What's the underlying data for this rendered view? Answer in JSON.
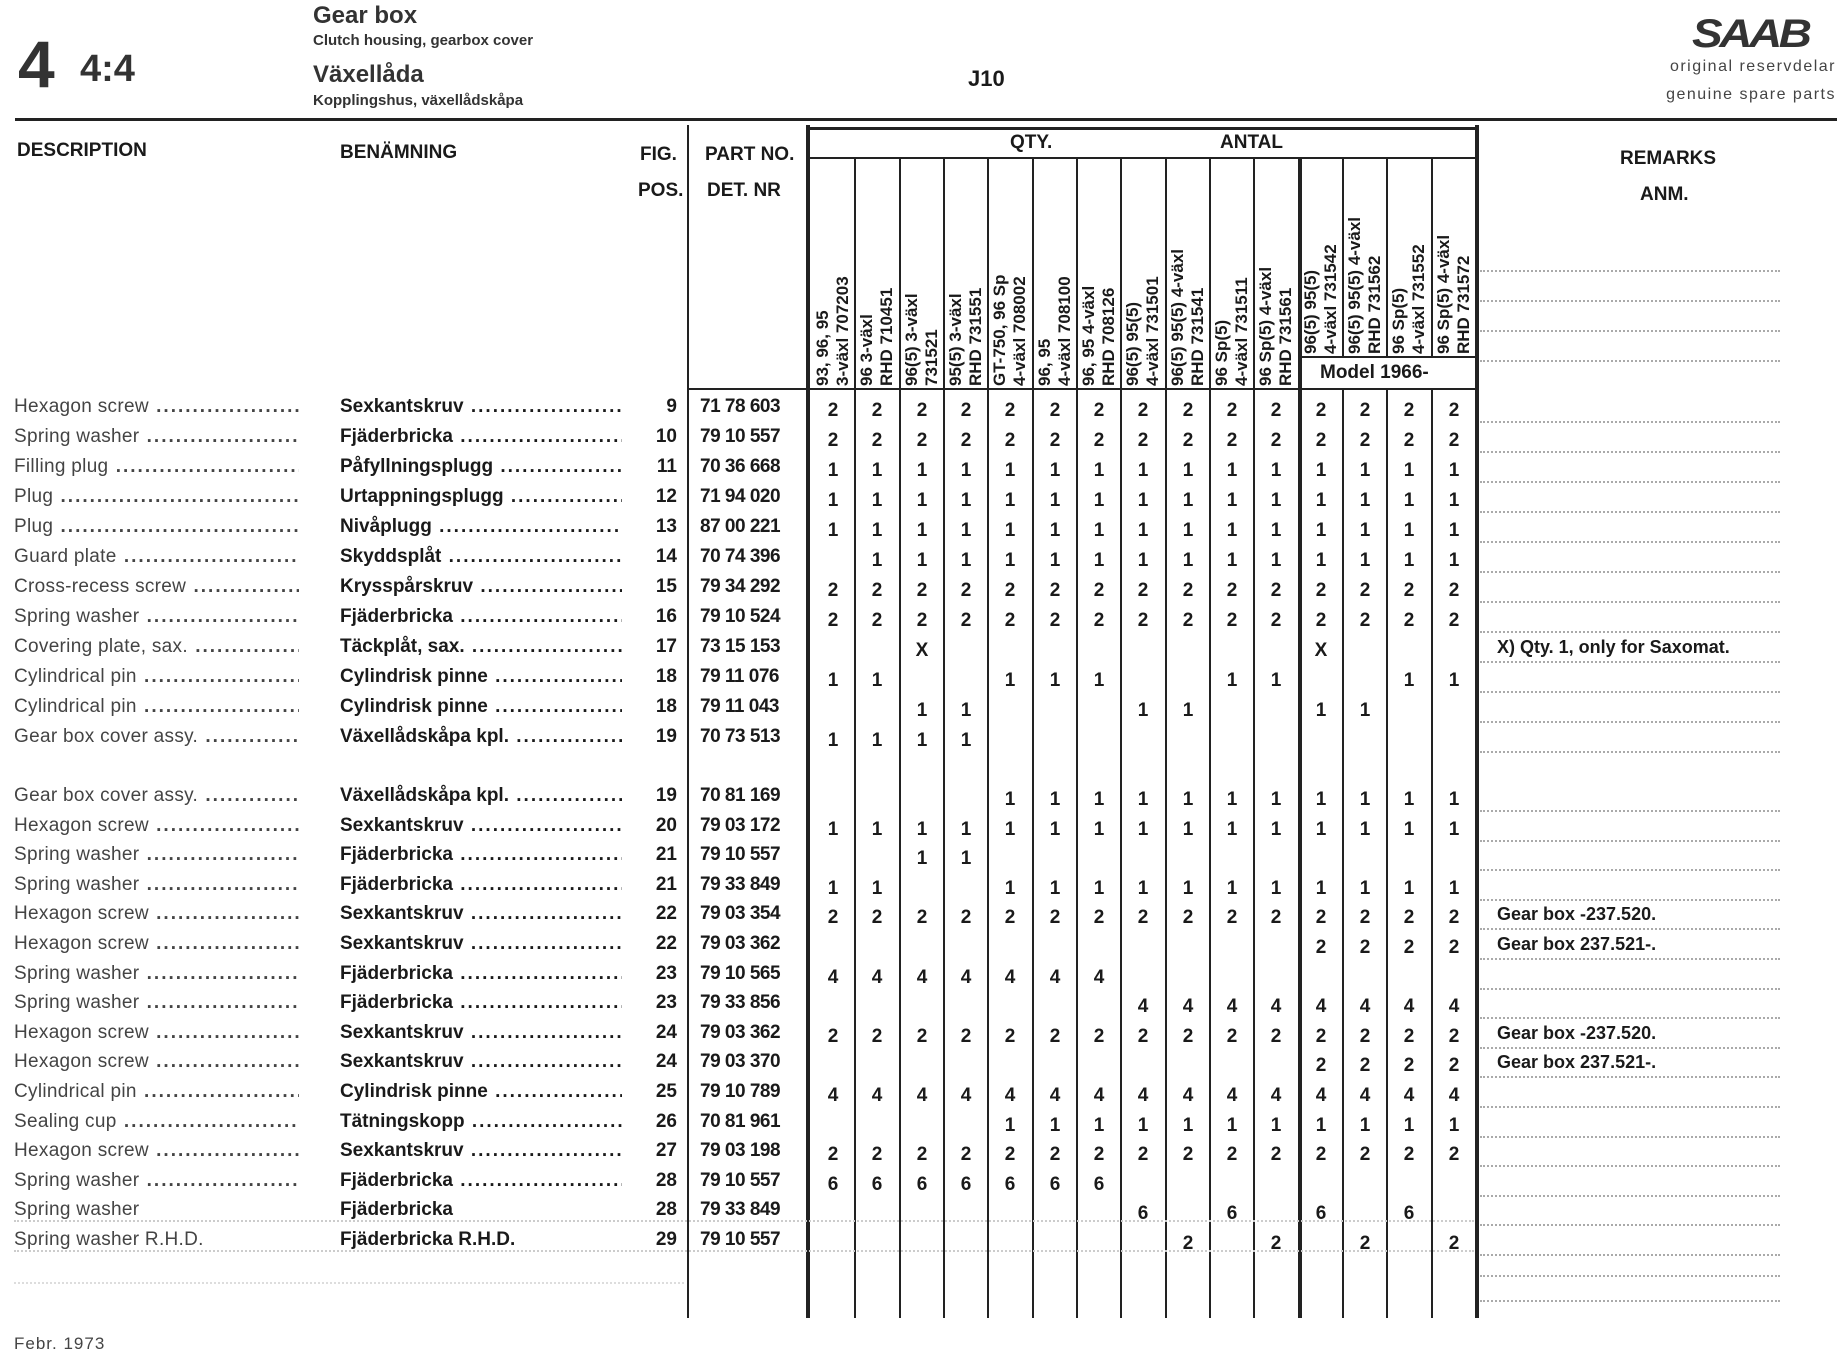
{
  "header": {
    "group_number": "4",
    "section_number": "4:4",
    "title_en": "Gear box",
    "subtitle_en": "Clutch housing, gearbox cover",
    "title_sv": "Växellåda",
    "subtitle_sv": "Kopplingshus, växellådskåpa",
    "page_code": "J10",
    "brand": "SAAB",
    "brand_line1": "original reservdelar",
    "brand_line2": "genuine spare parts"
  },
  "columns": {
    "description": "DESCRIPTION",
    "benamning": "BENÄMNING",
    "fig": "FIG.",
    "pos": "POS.",
    "part_no": "PART NO.",
    "det_nr": "DET. NR",
    "qty": "QTY.",
    "antal": "ANTAL",
    "remarks": "REMARKS",
    "anm": "ANM.",
    "model_note": "Model 1966-"
  },
  "variants": [
    {
      "line1": "93, 96, 95",
      "line2": "3-växl 707203"
    },
    {
      "line1": "96 3-växl",
      "line2": "RHD 710451"
    },
    {
      "line1": "96(5) 3-växl",
      "line2": "731521"
    },
    {
      "line1": "95(5) 3-växl",
      "line2": "RHD 731551"
    },
    {
      "line1": "GT-750, 96 Sp",
      "line2": "4-växl 708002"
    },
    {
      "line1": "96, 95",
      "line2": "4-växl 708100"
    },
    {
      "line1": "96, 95 4-växl",
      "line2": "RHD 708126"
    },
    {
      "line1": "96(5) 95(5)",
      "line2": "4-växl 731501"
    },
    {
      "line1": "96(5) 95(5) 4-växl",
      "line2": "RHD 731541"
    },
    {
      "line1": "96 Sp(5)",
      "line2": "4-växl 731511"
    },
    {
      "line1": "96 Sp(5) 4-växl",
      "line2": "RHD 731561"
    },
    {
      "line1": "96(5) 95(5)",
      "line2": "4-växl 731542"
    },
    {
      "line1": "96(5) 95(5) 4-växl",
      "line2": "RHD 731562"
    },
    {
      "line1": "96 Sp(5)",
      "line2": "4-växl 731552"
    },
    {
      "line1": "96 Sp(5) 4-växl",
      "line2": "RHD 731572"
    }
  ],
  "rows": [
    {
      "desc": "Hexagon screw",
      "ben": "Sexkantskruv",
      "pos": "9",
      "part": "71 78 603",
      "qty": [
        "2",
        "2",
        "2",
        "2",
        "2",
        "2",
        "2",
        "2",
        "2",
        "2",
        "2",
        "2",
        "2",
        "2",
        "2"
      ],
      "remark": "",
      "leader": true
    },
    {
      "desc": "Spring washer",
      "ben": "Fjäderbricka",
      "pos": "10",
      "part": "79 10 557",
      "qty": [
        "2",
        "2",
        "2",
        "2",
        "2",
        "2",
        "2",
        "2",
        "2",
        "2",
        "2",
        "2",
        "2",
        "2",
        "2"
      ],
      "remark": "",
      "leader": true
    },
    {
      "desc": "Filling plug",
      "ben": "Påfyllningsplugg",
      "pos": "11",
      "part": "70 36 668",
      "qty": [
        "1",
        "1",
        "1",
        "1",
        "1",
        "1",
        "1",
        "1",
        "1",
        "1",
        "1",
        "1",
        "1",
        "1",
        "1"
      ],
      "remark": "",
      "leader": true
    },
    {
      "desc": "Plug",
      "ben": "Urtappningsplugg",
      "pos": "12",
      "part": "71 94 020",
      "qty": [
        "1",
        "1",
        "1",
        "1",
        "1",
        "1",
        "1",
        "1",
        "1",
        "1",
        "1",
        "1",
        "1",
        "1",
        "1"
      ],
      "remark": "",
      "leader": true
    },
    {
      "desc": "Plug",
      "ben": "Nivåplugg",
      "pos": "13",
      "part": "87 00 221",
      "qty": [
        "1",
        "1",
        "1",
        "1",
        "1",
        "1",
        "1",
        "1",
        "1",
        "1",
        "1",
        "1",
        "1",
        "1",
        "1"
      ],
      "remark": "",
      "leader": true
    },
    {
      "desc": "Guard plate",
      "ben": "Skyddsplåt",
      "pos": "14",
      "part": "70 74 396",
      "qty": [
        "",
        "1",
        "1",
        "1",
        "1",
        "1",
        "1",
        "1",
        "1",
        "1",
        "1",
        "1",
        "1",
        "1",
        "1"
      ],
      "remark": "",
      "leader": true
    },
    {
      "desc": "Cross-recess screw",
      "ben": "Krysspårskruv",
      "pos": "15",
      "part": "79 34 292",
      "qty": [
        "2",
        "2",
        "2",
        "2",
        "2",
        "2",
        "2",
        "2",
        "2",
        "2",
        "2",
        "2",
        "2",
        "2",
        "2"
      ],
      "remark": "",
      "leader": true
    },
    {
      "desc": "Spring washer",
      "ben": "Fjäderbricka",
      "pos": "16",
      "part": "79 10 524",
      "qty": [
        "2",
        "2",
        "2",
        "2",
        "2",
        "2",
        "2",
        "2",
        "2",
        "2",
        "2",
        "2",
        "2",
        "2",
        "2"
      ],
      "remark": "",
      "leader": true
    },
    {
      "desc": "Covering plate, sax.",
      "ben": "Täckplåt, sax.",
      "pos": "17",
      "part": "73 15 153",
      "qty": [
        "",
        "",
        "X",
        "",
        "",
        "",
        "",
        "",
        "",
        "",
        "",
        "X",
        "",
        "",
        ""
      ],
      "remark": "X) Qty. 1, only for Saxomat.",
      "leader": true
    },
    {
      "desc": "Cylindrical pin",
      "ben": "Cylindrisk pinne",
      "pos": "18",
      "part": "79 11 076",
      "qty": [
        "1",
        "1",
        "",
        "",
        "1",
        "1",
        "1",
        "",
        "",
        "1",
        "1",
        "",
        "",
        "1",
        "1"
      ],
      "remark": "",
      "leader": true
    },
    {
      "desc": "Cylindrical pin",
      "ben": "Cylindrisk pinne",
      "pos": "18",
      "part": "79 11 043",
      "qty": [
        "",
        "",
        "1",
        "1",
        "",
        "",
        "",
        "1",
        "1",
        "",
        "",
        "1",
        "1",
        "",
        ""
      ],
      "remark": "",
      "leader": true
    },
    {
      "desc": "Gear box cover assy.",
      "ben": "Växellådskåpa kpl.",
      "pos": "19",
      "part": "70 73 513",
      "qty": [
        "1",
        "1",
        "1",
        "1",
        "",
        "",
        "",
        "",
        "",
        "",
        "",
        "",
        "",
        "",
        ""
      ],
      "remark": "",
      "leader": true
    },
    {
      "desc": "Gear box cover assy.",
      "ben": "Växellådskåpa kpl.",
      "pos": "19",
      "part": "70 81 169",
      "qty": [
        "",
        "",
        "",
        "",
        "1",
        "1",
        "1",
        "1",
        "1",
        "1",
        "1",
        "1",
        "1",
        "1",
        "1"
      ],
      "remark": "",
      "leader": true
    },
    {
      "desc": "Hexagon screw",
      "ben": "Sexkantskruv",
      "pos": "20",
      "part": "79 03 172",
      "qty": [
        "1",
        "1",
        "1",
        "1",
        "1",
        "1",
        "1",
        "1",
        "1",
        "1",
        "1",
        "1",
        "1",
        "1",
        "1"
      ],
      "remark": "",
      "leader": true
    },
    {
      "desc": "Spring washer",
      "ben": "Fjäderbricka",
      "pos": "21",
      "part": "79 10 557",
      "qty": [
        "",
        "",
        "1",
        "1",
        "",
        "",
        "",
        "",
        "",
        "",
        "",
        "",
        "",
        "",
        ""
      ],
      "remark": "",
      "leader": true
    },
    {
      "desc": "Spring washer",
      "ben": "Fjäderbricka",
      "pos": "21",
      "part": "79 33 849",
      "qty": [
        "1",
        "1",
        "",
        "",
        "1",
        "1",
        "1",
        "1",
        "1",
        "1",
        "1",
        "1",
        "1",
        "1",
        "1"
      ],
      "remark": "",
      "leader": true
    },
    {
      "desc": "Hexagon screw",
      "ben": "Sexkantskruv",
      "pos": "22",
      "part": "79 03 354",
      "qty": [
        "2",
        "2",
        "2",
        "2",
        "2",
        "2",
        "2",
        "2",
        "2",
        "2",
        "2",
        "2",
        "2",
        "2",
        "2"
      ],
      "remark": "Gear box -237.520.",
      "leader": true
    },
    {
      "desc": "Hexagon screw",
      "ben": "Sexkantskruv",
      "pos": "22",
      "part": "79 03 362",
      "qty": [
        "",
        "",
        "",
        "",
        "",
        "",
        "",
        "",
        "",
        "",
        "",
        "2",
        "2",
        "2",
        "2"
      ],
      "remark": "Gear box 237.521-.",
      "leader": true
    },
    {
      "desc": "Spring washer",
      "ben": "Fjäderbricka",
      "pos": "23",
      "part": "79 10 565",
      "qty": [
        "4",
        "4",
        "4",
        "4",
        "4",
        "4",
        "4",
        "",
        "",
        "",
        "",
        "",
        "",
        "",
        ""
      ],
      "remark": "",
      "leader": true
    },
    {
      "desc": "Spring washer",
      "ben": "Fjäderbricka",
      "pos": "23",
      "part": "79 33 856",
      "qty": [
        "",
        "",
        "",
        "",
        "",
        "",
        "",
        "4",
        "4",
        "4",
        "4",
        "4",
        "4",
        "4",
        "4"
      ],
      "remark": "",
      "leader": true
    },
    {
      "desc": "Hexagon screw",
      "ben": "Sexkantskruv",
      "pos": "24",
      "part": "79 03 362",
      "qty": [
        "2",
        "2",
        "2",
        "2",
        "2",
        "2",
        "2",
        "2",
        "2",
        "2",
        "2",
        "2",
        "2",
        "2",
        "2"
      ],
      "remark": "Gear box -237.520.",
      "leader": true
    },
    {
      "desc": "Hexagon screw",
      "ben": "Sexkantskruv",
      "pos": "24",
      "part": "79 03 370",
      "qty": [
        "",
        "",
        "",
        "",
        "",
        "",
        "",
        "",
        "",
        "",
        "",
        "2",
        "2",
        "2",
        "2"
      ],
      "remark": "Gear box 237.521-.",
      "leader": true
    },
    {
      "desc": "Cylindrical pin",
      "ben": "Cylindrisk pinne",
      "pos": "25",
      "part": "79 10 789",
      "qty": [
        "4",
        "4",
        "4",
        "4",
        "4",
        "4",
        "4",
        "4",
        "4",
        "4",
        "4",
        "4",
        "4",
        "4",
        "4"
      ],
      "remark": "",
      "leader": true
    },
    {
      "desc": "Sealing cup",
      "ben": "Tätningskopp",
      "pos": "26",
      "part": "70 81 961",
      "qty": [
        "",
        "",
        "",
        "",
        "1",
        "1",
        "1",
        "1",
        "1",
        "1",
        "1",
        "1",
        "1",
        "1",
        "1"
      ],
      "remark": "",
      "leader": true
    },
    {
      "desc": "Hexagon screw",
      "ben": "Sexkantskruv",
      "pos": "27",
      "part": "79 03 198",
      "qty": [
        "2",
        "2",
        "2",
        "2",
        "2",
        "2",
        "2",
        "2",
        "2",
        "2",
        "2",
        "2",
        "2",
        "2",
        "2"
      ],
      "remark": "",
      "leader": true
    },
    {
      "desc": "Spring washer",
      "ben": "Fjäderbricka",
      "pos": "28",
      "part": "79 10 557",
      "qty": [
        "6",
        "6",
        "6",
        "6",
        "6",
        "6",
        "6",
        "",
        "",
        "",
        "",
        "",
        "",
        "",
        ""
      ],
      "remark": "",
      "leader": true
    },
    {
      "desc": "Spring washer",
      "ben": "Fjäderbricka",
      "pos": "28",
      "part": "79 33 849",
      "qty": [
        "",
        "",
        "",
        "",
        "",
        "",
        "",
        "6",
        "",
        "6",
        "",
        "6",
        "",
        "6",
        ""
      ],
      "remark": "",
      "leader": false
    },
    {
      "desc": "Spring washer R.H.D.",
      "ben": "Fjäderbricka R.H.D.",
      "pos": "29",
      "part": "79 10 557",
      "qty": [
        "",
        "",
        "",
        "",
        "",
        "",
        "",
        "",
        "2",
        "",
        "2",
        "",
        "2",
        "",
        "2"
      ],
      "remark": "",
      "leader": false
    }
  ],
  "footer": {
    "date": "Febr. 1973"
  }
}
